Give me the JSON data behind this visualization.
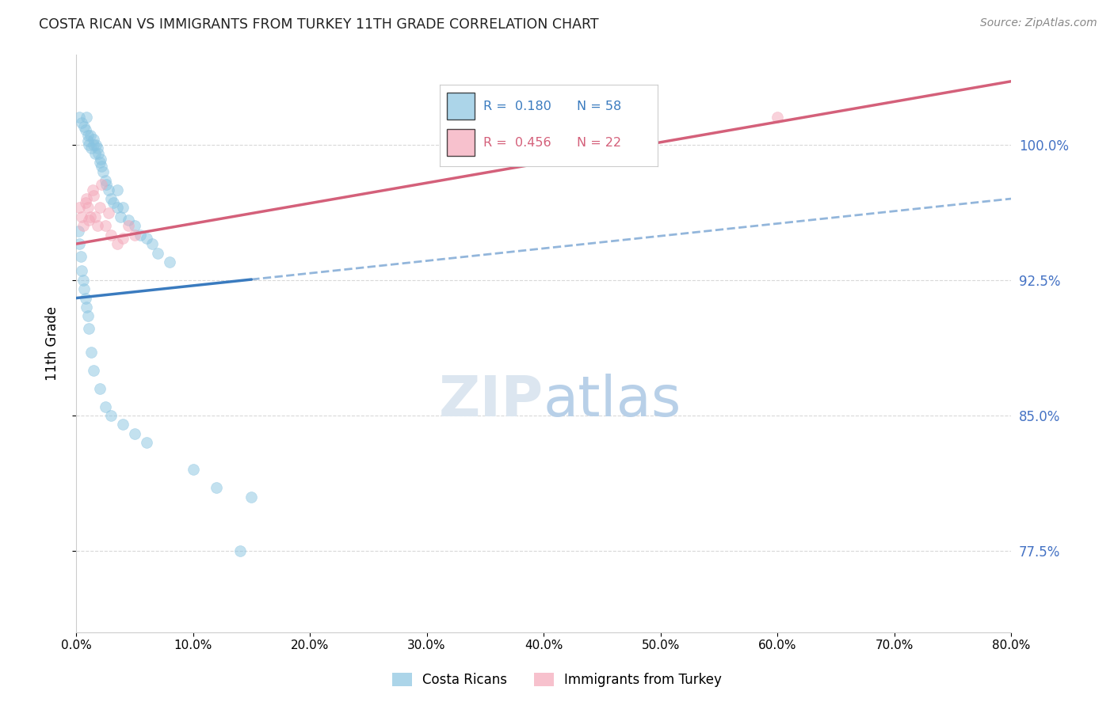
{
  "title": "COSTA RICAN VS IMMIGRANTS FROM TURKEY 11TH GRADE CORRELATION CHART",
  "source": "Source: ZipAtlas.com",
  "xlabel_vals": [
    0,
    10,
    20,
    30,
    40,
    50,
    60,
    70,
    80
  ],
  "ylabel_vals": [
    77.5,
    85.0,
    92.5,
    100.0
  ],
  "ylabel_label": "11th Grade",
  "xlim": [
    0,
    80
  ],
  "ylim": [
    73,
    105
  ],
  "blue_scatter_x": [
    0.3,
    0.5,
    0.7,
    0.8,
    0.9,
    1.0,
    1.0,
    1.1,
    1.2,
    1.3,
    1.5,
    1.5,
    1.6,
    1.7,
    1.8,
    1.9,
    2.0,
    2.1,
    2.2,
    2.3,
    2.5,
    2.6,
    2.8,
    3.0,
    3.2,
    3.5,
    3.5,
    3.8,
    4.0,
    4.5,
    5.0,
    5.5,
    6.0,
    6.5,
    7.0,
    8.0,
    0.2,
    0.3,
    0.4,
    0.5,
    0.6,
    0.7,
    0.8,
    0.9,
    1.0,
    1.1,
    1.3,
    1.5,
    2.0,
    2.5,
    3.0,
    4.0,
    5.0,
    6.0,
    10.0,
    12.0,
    15.0,
    14.0
  ],
  "blue_scatter_y": [
    101.5,
    101.2,
    101.0,
    100.8,
    101.5,
    100.5,
    100.2,
    100.0,
    100.5,
    99.8,
    100.3,
    100.0,
    99.5,
    100.0,
    99.8,
    99.5,
    99.0,
    99.2,
    98.8,
    98.5,
    98.0,
    97.8,
    97.5,
    97.0,
    96.8,
    97.5,
    96.5,
    96.0,
    96.5,
    95.8,
    95.5,
    95.0,
    94.8,
    94.5,
    94.0,
    93.5,
    95.2,
    94.5,
    93.8,
    93.0,
    92.5,
    92.0,
    91.5,
    91.0,
    90.5,
    89.8,
    88.5,
    87.5,
    86.5,
    85.5,
    85.0,
    84.5,
    84.0,
    83.5,
    82.0,
    81.0,
    80.5,
    77.5
  ],
  "pink_scatter_x": [
    0.3,
    0.5,
    0.6,
    0.8,
    0.9,
    1.0,
    1.1,
    1.2,
    1.4,
    1.5,
    1.6,
    1.8,
    2.0,
    2.2,
    2.5,
    2.8,
    3.0,
    3.5,
    4.0,
    4.5,
    5.0,
    60.0
  ],
  "pink_scatter_y": [
    96.5,
    96.0,
    95.5,
    96.8,
    97.0,
    96.5,
    95.8,
    96.0,
    97.5,
    97.2,
    96.0,
    95.5,
    96.5,
    97.8,
    95.5,
    96.2,
    95.0,
    94.5,
    94.8,
    95.5,
    95.0,
    101.5
  ],
  "blue_line_x0": 0,
  "blue_line_x1": 80,
  "blue_line_y0": 91.5,
  "blue_line_y1": 97.0,
  "blue_dash_start": 15,
  "pink_line_x0": 0,
  "pink_line_x1": 80,
  "pink_line_y0": 94.5,
  "pink_line_y1": 103.5,
  "blue_color": "#89c4e1",
  "pink_color": "#f4a7b9",
  "blue_line_color": "#3a7bbf",
  "pink_line_color": "#d4607a",
  "watermark_zip_color": "#dce6f0",
  "watermark_atlas_color": "#b8d0e8",
  "grid_color": "#d0d0d0",
  "title_color": "#222222",
  "right_axis_color": "#4472c4"
}
